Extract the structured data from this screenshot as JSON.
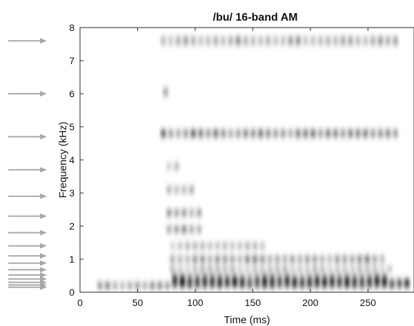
{
  "chart_data": {
    "type": "heatmap",
    "title": "/bu/ 16-band AM",
    "xlabel": "Time (ms)",
    "ylabel": "Frequency (kHz)",
    "xlim": [
      0,
      290
    ],
    "ylim": [
      0,
      8
    ],
    "x_ticks": [
      0,
      50,
      100,
      150,
      200,
      250
    ],
    "y_ticks": [
      0,
      1,
      2,
      3,
      4,
      5,
      6,
      7,
      8
    ],
    "colormap": "grayscale (dark = high energy)",
    "band_marker_color": "#a8a8a8",
    "band_center_frequencies_khz": [
      0.15,
      0.22,
      0.3,
      0.4,
      0.52,
      0.68,
      0.88,
      1.1,
      1.4,
      1.8,
      2.3,
      2.9,
      3.7,
      4.7,
      6.0,
      7.6
    ],
    "bands": [
      {
        "freq": 0.2,
        "start": 15,
        "end": 290,
        "intensity": 0.55
      },
      {
        "freq": 0.3,
        "start": 80,
        "end": 290,
        "intensity": 0.95
      },
      {
        "freq": 0.45,
        "start": 80,
        "end": 270,
        "intensity": 0.6
      },
      {
        "freq": 0.7,
        "start": 78,
        "end": 270,
        "intensity": 0.35
      },
      {
        "freq": 1.0,
        "start": 78,
        "end": 265,
        "intensity": 0.55
      },
      {
        "freq": 1.4,
        "start": 78,
        "end": 160,
        "intensity": 0.35
      },
      {
        "freq": 1.9,
        "start": 75,
        "end": 110,
        "intensity": 0.45
      },
      {
        "freq": 2.4,
        "start": 75,
        "end": 110,
        "intensity": 0.5
      },
      {
        "freq": 3.1,
        "start": 75,
        "end": 100,
        "intensity": 0.4
      },
      {
        "freq": 3.8,
        "start": 75,
        "end": 90,
        "intensity": 0.3
      },
      {
        "freq": 4.8,
        "start": 70,
        "end": 280,
        "intensity": 0.6
      },
      {
        "freq": 6.05,
        "start": 72,
        "end": 80,
        "intensity": 0.6
      },
      {
        "freq": 7.6,
        "start": 70,
        "end": 280,
        "intensity": 0.4
      }
    ]
  }
}
